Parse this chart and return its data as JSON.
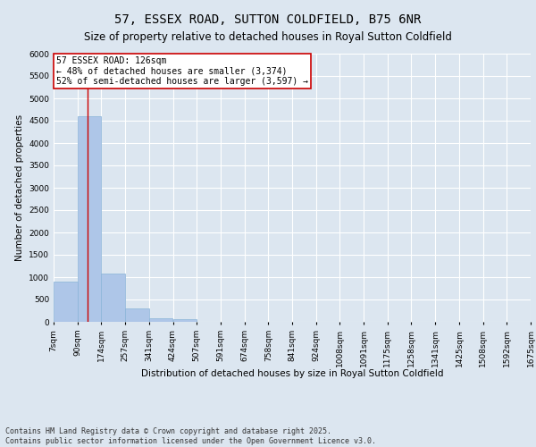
{
  "title": "57, ESSEX ROAD, SUTTON COLDFIELD, B75 6NR",
  "subtitle": "Size of property relative to detached houses in Royal Sutton Coldfield",
  "xlabel": "Distribution of detached houses by size in Royal Sutton Coldfield",
  "ylabel": "Number of detached properties",
  "bar_color": "#aec6e8",
  "bar_edge_color": "#8ab4d8",
  "background_color": "#dce6f0",
  "grid_color": "#ffffff",
  "annotation_text": "57 ESSEX ROAD: 126sqm\n← 48% of detached houses are smaller (3,374)\n52% of semi-detached houses are larger (3,597) →",
  "annotation_box_color": "#ffffff",
  "annotation_border_color": "#cc0000",
  "property_line_color": "#cc0000",
  "property_line_x": 126,
  "bins": [
    7,
    90,
    174,
    257,
    341,
    424,
    507,
    591,
    674,
    758,
    841,
    924,
    1008,
    1091,
    1175,
    1258,
    1341,
    1425,
    1508,
    1592,
    1675
  ],
  "counts": [
    900,
    4600,
    1090,
    295,
    80,
    55,
    0,
    0,
    0,
    0,
    0,
    0,
    0,
    0,
    0,
    0,
    0,
    0,
    0,
    0
  ],
  "ylim": [
    0,
    6000
  ],
  "yticks": [
    0,
    500,
    1000,
    1500,
    2000,
    2500,
    3000,
    3500,
    4000,
    4500,
    5000,
    5500,
    6000
  ],
  "footnote": "Contains HM Land Registry data © Crown copyright and database right 2025.\nContains public sector information licensed under the Open Government Licence v3.0.",
  "title_fontsize": 10,
  "subtitle_fontsize": 8.5,
  "axis_label_fontsize": 7.5,
  "tick_fontsize": 6.5,
  "annotation_fontsize": 7,
  "footnote_fontsize": 6
}
